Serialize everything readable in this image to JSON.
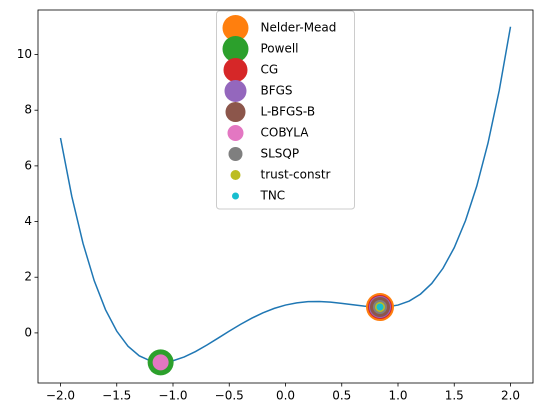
{
  "chart_data": {
    "type": "line",
    "color": "#1f77b4",
    "x": [
      -2.0,
      -1.9,
      -1.8,
      -1.7,
      -1.6,
      -1.5,
      -1.4,
      -1.3,
      -1.2,
      -1.1,
      -1.0,
      -0.9,
      -0.8,
      -0.7,
      -0.6,
      -0.5,
      -0.4,
      -0.3,
      -0.2,
      -0.1,
      0.0,
      0.1,
      0.2,
      0.3,
      0.4,
      0.5,
      0.6,
      0.7,
      0.8,
      0.9,
      1.0,
      1.1,
      1.2,
      1.3,
      1.4,
      1.5,
      1.6,
      1.7,
      1.8,
      1.9,
      2.0
    ],
    "values": [
      7,
      4.9121,
      3.2176,
      1.8721,
      0.8336,
      0.0625,
      -0.4784,
      -0.8239,
      -1.0064,
      -1.0559,
      -1,
      -0.8639,
      -0.6704,
      -0.4399,
      -0.1904,
      0.0625,
      0.3056,
      0.5281,
      0.7216,
      0.8801,
      1,
      1.0801,
      1.1216,
      1.1281,
      1.1056,
      1.0625,
      1.0096,
      0.9601,
      0.9296,
      0.9361,
      1,
      1.1441,
      1.3936,
      1.7761,
      2.3216,
      3.0625,
      4.0336,
      5.2721,
      6.8176,
      8.7121,
      11
    ],
    "series": [
      {
        "name": "Nelder-Mead",
        "color": "#ff7f0e",
        "type": "scatter",
        "x": [
          0.84
        ],
        "values": [
          0.93
        ]
      },
      {
        "name": "Powell",
        "color": "#2ca02c",
        "type": "scatter",
        "x": [
          -1.11
        ],
        "values": [
          -1.06
        ]
      },
      {
        "name": "CG",
        "color": "#d62728",
        "type": "scatter",
        "x": [
          0.84
        ],
        "values": [
          0.93
        ]
      },
      {
        "name": "BFGS",
        "color": "#9467bd",
        "type": "scatter",
        "x": [
          0.84
        ],
        "values": [
          0.93
        ]
      },
      {
        "name": "L-BFGS-B",
        "color": "#8c564b",
        "type": "scatter",
        "x": [
          0.84
        ],
        "values": [
          0.93
        ]
      },
      {
        "name": "COBYLA",
        "color": "#e377c2",
        "type": "scatter",
        "x": [
          -1.11
        ],
        "values": [
          -1.06
        ]
      },
      {
        "name": "SLSQP",
        "color": "#7f7f7f",
        "type": "scatter",
        "x": [
          0.84
        ],
        "values": [
          0.93
        ]
      },
      {
        "name": "trust-constr",
        "color": "#bcbd22",
        "type": "scatter",
        "x": [
          0.84
        ],
        "values": [
          0.93
        ]
      },
      {
        "name": "TNC",
        "color": "#17becf",
        "type": "scatter",
        "x": [
          0.84
        ],
        "values": [
          0.93
        ]
      }
    ],
    "xlim": [
      -2.2,
      2.2
    ],
    "ylim": [
      -1.8,
      11.6
    ],
    "xticks": [
      {
        "value": -2,
        "label": "−2.0"
      },
      {
        "value": -1.5,
        "label": "−1.5"
      },
      {
        "value": -1,
        "label": "−1.0"
      },
      {
        "value": -0.5,
        "label": "−0.5"
      },
      {
        "value": 0,
        "label": "0.0"
      },
      {
        "value": 0.5,
        "label": "0.5"
      },
      {
        "value": 1,
        "label": "1.0"
      },
      {
        "value": 1.5,
        "label": "1.5"
      },
      {
        "value": 2,
        "label": "2.0"
      }
    ],
    "yticks": [
      0,
      2,
      4,
      6,
      8,
      10
    ],
    "legend": "upper center"
  }
}
